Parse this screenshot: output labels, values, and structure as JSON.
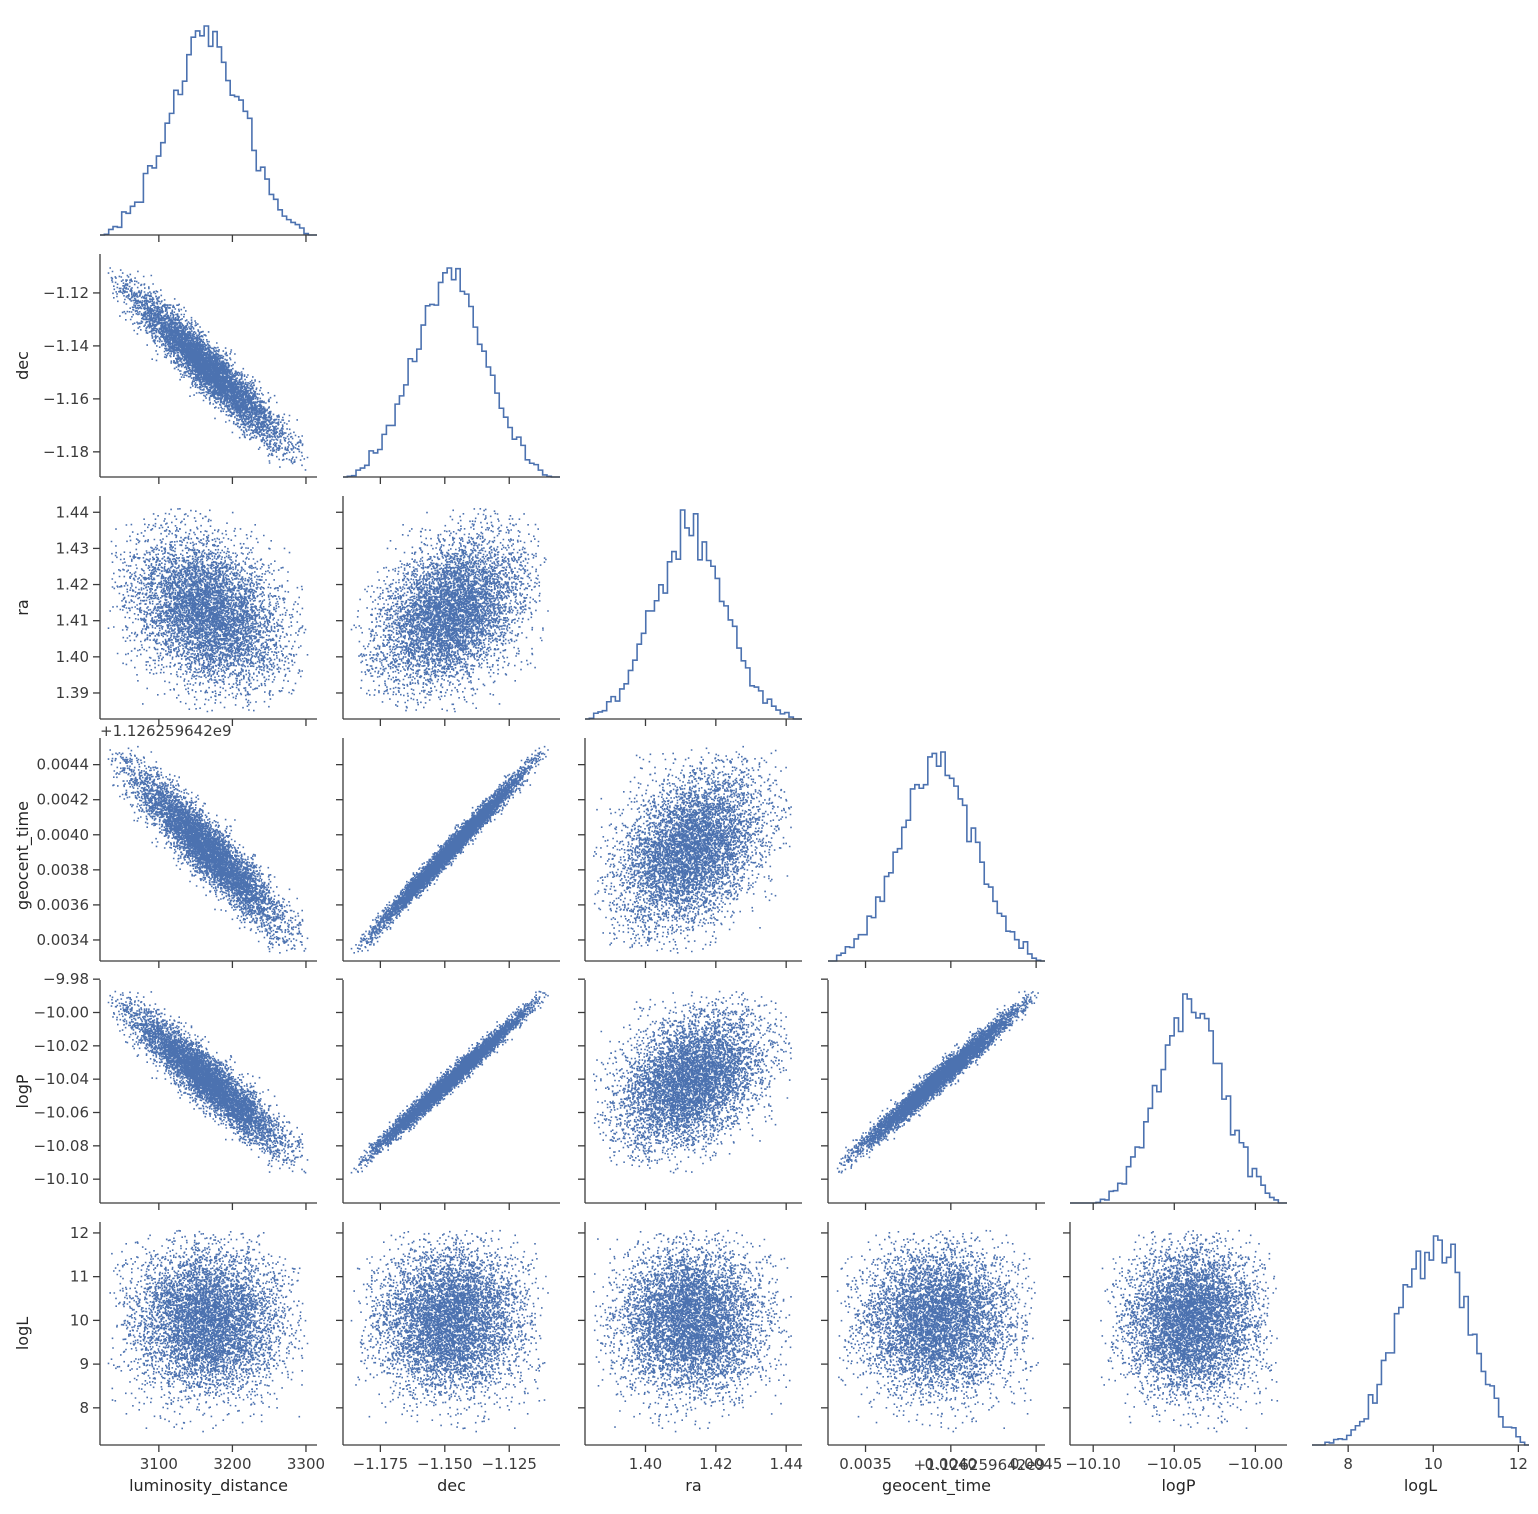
{
  "figure": {
    "type": "corner-pairplot",
    "parameters": [
      "luminosity_distance",
      "dec",
      "ra",
      "geocent_time",
      "logP",
      "logL"
    ],
    "series_color": "#4c72b0",
    "axis_color": "#3b3b3b",
    "geocent_time_offset_label": "+1.126259642e9"
  },
  "chart_data": {
    "type": "scatter",
    "layout": "lower-triangle pair plot with 1D step histograms on the diagonal",
    "variables": [
      {
        "name": "luminosity_distance",
        "xlabel": "luminosity_distance",
        "ylabel": "",
        "range": [
          3020,
          3315
        ],
        "ticks": [
          3100,
          3200,
          3300
        ],
        "tick_labels": [
          "3100",
          "3200",
          "3300"
        ],
        "mean": 3165,
        "sd": 50,
        "hist_max_count": 450
      },
      {
        "name": "dec",
        "xlabel": "dec",
        "ylabel": "dec",
        "range": [
          -1.1895,
          -1.1053
        ],
        "ticks": [
          -1.175,
          -1.15,
          -1.125
        ],
        "tick_labels": [
          "−1.175",
          "−1.150",
          "−1.125"
        ],
        "y_ticks": [
          -1.18,
          -1.16,
          -1.14,
          -1.12
        ],
        "y_tick_labels": [
          "−1.18",
          "−1.16",
          "−1.14",
          "−1.12"
        ],
        "mean": -1.148,
        "sd": 0.014,
        "hist_max_count": 450
      },
      {
        "name": "ra",
        "xlabel": "ra",
        "ylabel": "ra",
        "range": [
          1.3828,
          1.4445
        ],
        "ticks": [
          1.4,
          1.42,
          1.44
        ],
        "tick_labels": [
          "1.40",
          "1.42",
          "1.44"
        ],
        "y_ticks": [
          1.39,
          1.4,
          1.41,
          1.42,
          1.43,
          1.44
        ],
        "y_tick_labels": [
          "1.39",
          "1.40",
          "1.41",
          "1.42",
          "1.43",
          "1.44"
        ],
        "mean": 1.4125,
        "sd": 0.01,
        "hist_max_count": 450
      },
      {
        "name": "geocent_time",
        "xlabel": "geocent_time",
        "ylabel": "geocent_time",
        "range": [
          0.00328,
          0.004552
        ],
        "ticks": [
          0.0035,
          0.004,
          0.0045
        ],
        "tick_labels": [
          "0.0035",
          "0.0040",
          "0.0045"
        ],
        "y_ticks": [
          0.0034,
          0.0036,
          0.0038,
          0.004,
          0.0042,
          0.0044
        ],
        "y_tick_labels": [
          "0.0034",
          "0.0036",
          "0.0038",
          "0.0040",
          "0.0042",
          "0.0044"
        ],
        "offset_text": "+1.126259642e9",
        "mean": 0.00392,
        "sd": 0.00022,
        "hist_max_count": 450
      },
      {
        "name": "logP",
        "xlabel": "logP",
        "ylabel": "logP",
        "range": [
          -10.1143,
          -9.9805
        ],
        "ticks": [
          -10.1,
          -10.05,
          -10.0
        ],
        "tick_labels": [
          "−10.10",
          "−10.05",
          "−10.00"
        ],
        "y_ticks": [
          -10.1,
          -10.08,
          -10.06,
          -10.04,
          -10.02,
          -10.0,
          -9.98
        ],
        "y_tick_labels": [
          "−10.10",
          "−10.08",
          "−10.06",
          "−10.04",
          "−10.02",
          "−10.00",
          "−9.98"
        ],
        "mean": -10.04,
        "sd": 0.02,
        "hist_max_count": 450
      },
      {
        "name": "logL",
        "xlabel": "logL",
        "ylabel": "logL",
        "range": [
          7.15,
          12.25
        ],
        "ticks": [
          8,
          10,
          12
        ],
        "tick_labels": [
          "8",
          "10",
          "12"
        ],
        "y_ticks": [
          8,
          9,
          10,
          11,
          12
        ],
        "y_tick_labels": [
          "8",
          "9",
          "10",
          "11",
          "12"
        ],
        "mean": 10.0,
        "sd": 0.9,
        "hist_max_count": 450
      }
    ],
    "correlations": [
      [
        "luminosity_distance",
        "dec",
        -0.94
      ],
      [
        "luminosity_distance",
        "ra",
        -0.3
      ],
      [
        "luminosity_distance",
        "geocent_time",
        -0.92
      ],
      [
        "luminosity_distance",
        "logP",
        -0.92
      ],
      [
        "dec",
        "ra",
        0.35
      ],
      [
        "dec",
        "geocent_time",
        0.99
      ],
      [
        "dec",
        "logP",
        0.99
      ],
      [
        "ra",
        "geocent_time",
        0.35
      ],
      [
        "ra",
        "logP",
        0.35
      ],
      [
        "geocent_time",
        "logP",
        0.985
      ]
    ],
    "samples": 10000,
    "hist_bins": 50,
    "grid": false,
    "legend": "none"
  }
}
